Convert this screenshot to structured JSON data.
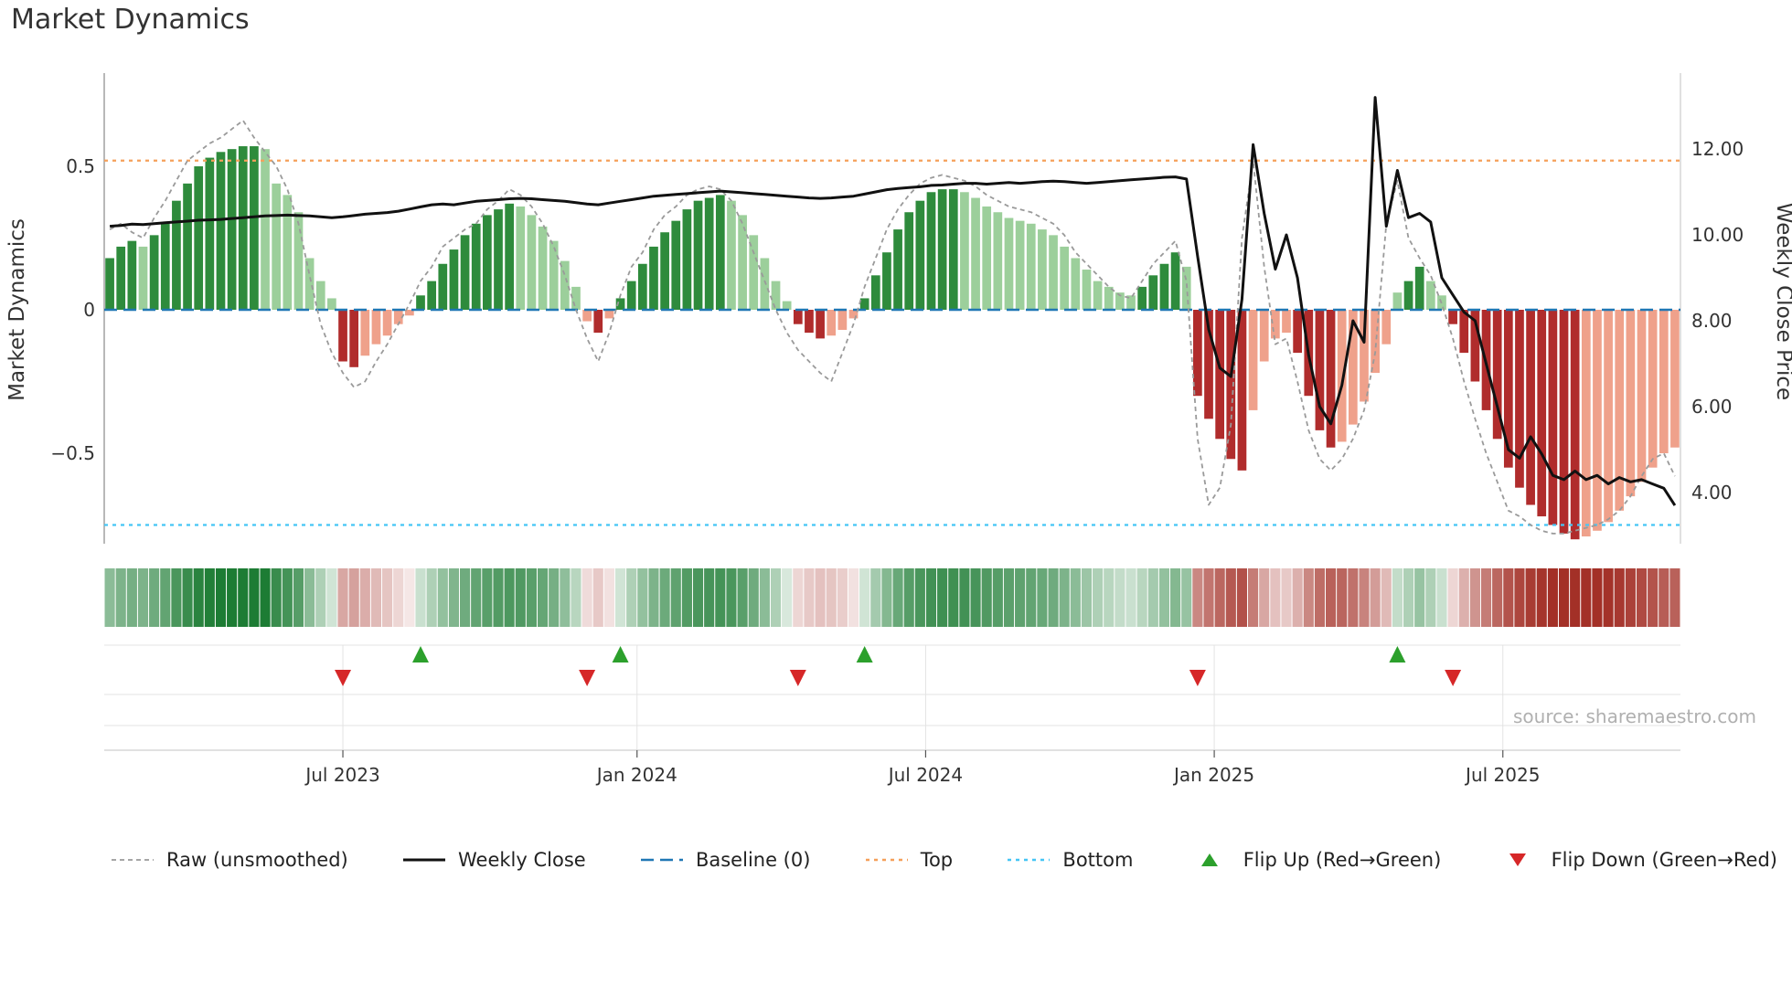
{
  "title": "Market Dynamics",
  "source": "source: sharemaestro.com",
  "axes": {
    "left_label": "Market Dynamics",
    "right_label": "Weekly Close Price",
    "left_ticks": [
      {
        "v": 0.5,
        "label": "0.5"
      },
      {
        "v": 0,
        "label": "0"
      },
      {
        "v": -0.5,
        "label": "−0.5"
      }
    ],
    "right_ticks": [
      {
        "v": 12,
        "label": "12.00"
      },
      {
        "v": 10,
        "label": "10.00"
      },
      {
        "v": 8,
        "label": "8.00"
      },
      {
        "v": 6,
        "label": "6.00"
      },
      {
        "v": 4,
        "label": "4.00"
      }
    ],
    "x_ticks": [
      {
        "i": 21,
        "label": "Jul 2023"
      },
      {
        "i": 47.5,
        "label": "Jan 2024"
      },
      {
        "i": 73.5,
        "label": "Jul 2024"
      },
      {
        "i": 99.5,
        "label": "Jan 2025"
      },
      {
        "i": 125.5,
        "label": "Jul 2025"
      }
    ]
  },
  "colors": {
    "bar_green_dark": "#2e8b3c",
    "bar_green_light": "#9ccf9b",
    "bar_red_dark": "#b02c2c",
    "bar_red_light": "#efa18b",
    "heat_green": "#1d7c34",
    "heat_red": "#a33027",
    "baseline": "#1f77b4",
    "top_line": "#f5a05a",
    "bottom_line": "#45c5f5",
    "raw_line": "#9a9a9a",
    "price_line": "#111111",
    "flip_up": "#2ca02c",
    "flip_down": "#d62728",
    "grid": "#e3e3e3",
    "tick_text": "#333333",
    "source_text": "#b0b0b0"
  },
  "legend": [
    {
      "label": "Raw (unsmoothed)",
      "sample": "line",
      "color": "#9a9a9a",
      "dash": "5 4",
      "width": 1.8
    },
    {
      "label": "Weekly Close",
      "sample": "line",
      "color": "#111111",
      "dash": "",
      "width": 3
    },
    {
      "label": "Baseline (0)",
      "sample": "line",
      "color": "#1f77b4",
      "dash": "14 7",
      "width": 2.6
    },
    {
      "label": "Top",
      "sample": "line",
      "color": "#f5a05a",
      "dash": "4 5",
      "width": 2.4
    },
    {
      "label": "Bottom",
      "sample": "line",
      "color": "#45c5f5",
      "dash": "4 5",
      "width": 2.4
    },
    {
      "label": "Flip Up (Red→Green)",
      "sample": "triangle-up",
      "color": "#2ca02c"
    },
    {
      "label": "Flip Down (Green→Red)",
      "sample": "triangle-down",
      "color": "#d62728"
    }
  ],
  "chart_data": {
    "type": "bar",
    "description": "Weekly oscillator bars (left axis) with raw unsmoothed line, weekly close price line (right axis), heatmap strip and flip markers",
    "ylim_left": [
      -0.82,
      0.82
    ],
    "ylim_right": [
      2.8,
      13.8
    ],
    "reference_lines": {
      "baseline": 0,
      "top": 0.52,
      "bottom": -0.75
    },
    "flip_up_indices": [
      28,
      46,
      68,
      116
    ],
    "flip_down_indices": [
      21,
      43,
      62,
      98,
      121
    ],
    "series": [
      {
        "name": "Market Dynamics (bars)",
        "kind": "bar",
        "axis": "left",
        "values": [
          0.18,
          0.22,
          0.24,
          0.22,
          0.26,
          0.3,
          0.38,
          0.44,
          0.5,
          0.53,
          0.55,
          0.56,
          0.57,
          0.57,
          0.56,
          0.44,
          0.4,
          0.34,
          0.18,
          0.1,
          0.04,
          -0.18,
          -0.2,
          -0.16,
          -0.12,
          -0.09,
          -0.05,
          -0.02,
          0.05,
          0.1,
          0.16,
          0.21,
          0.26,
          0.3,
          0.33,
          0.35,
          0.37,
          0.36,
          0.33,
          0.29,
          0.24,
          0.17,
          0.08,
          -0.04,
          -0.08,
          -0.03,
          0.04,
          0.1,
          0.16,
          0.22,
          0.27,
          0.31,
          0.35,
          0.38,
          0.39,
          0.4,
          0.38,
          0.33,
          0.26,
          0.18,
          0.1,
          0.03,
          -0.05,
          -0.08,
          -0.1,
          -0.09,
          -0.07,
          -0.03,
          0.04,
          0.12,
          0.2,
          0.28,
          0.34,
          0.38,
          0.41,
          0.42,
          0.42,
          0.41,
          0.39,
          0.36,
          0.34,
          0.32,
          0.31,
          0.3,
          0.28,
          0.26,
          0.22,
          0.18,
          0.14,
          0.1,
          0.08,
          0.06,
          0.05,
          0.08,
          0.12,
          0.16,
          0.2,
          0.15,
          -0.3,
          -0.38,
          -0.45,
          -0.52,
          -0.56,
          -0.35,
          -0.18,
          -0.1,
          -0.08,
          -0.15,
          -0.3,
          -0.42,
          -0.48,
          -0.46,
          -0.4,
          -0.32,
          -0.22,
          -0.12,
          0.06,
          0.1,
          0.15,
          0.1,
          0.05,
          -0.05,
          -0.15,
          -0.25,
          -0.35,
          -0.45,
          -0.55,
          -0.62,
          -0.68,
          -0.72,
          -0.75,
          -0.78,
          -0.8,
          -0.79,
          -0.77,
          -0.74,
          -0.7,
          -0.65,
          -0.6,
          -0.55,
          -0.5,
          -0.48
        ]
      },
      {
        "name": "Raw (unsmoothed)",
        "kind": "line",
        "axis": "left",
        "values": [
          0.28,
          0.3,
          0.27,
          0.25,
          0.32,
          0.38,
          0.45,
          0.52,
          0.55,
          0.58,
          0.6,
          0.63,
          0.66,
          0.6,
          0.55,
          0.5,
          0.42,
          0.3,
          0.12,
          -0.05,
          -0.15,
          -0.22,
          -0.27,
          -0.25,
          -0.18,
          -0.12,
          -0.05,
          0.02,
          0.1,
          0.15,
          0.22,
          0.25,
          0.28,
          0.3,
          0.35,
          0.38,
          0.42,
          0.4,
          0.36,
          0.3,
          0.22,
          0.12,
          0.0,
          -0.1,
          -0.18,
          -0.08,
          0.05,
          0.15,
          0.2,
          0.28,
          0.33,
          0.36,
          0.4,
          0.42,
          0.43,
          0.42,
          0.38,
          0.3,
          0.2,
          0.1,
          0.0,
          -0.08,
          -0.14,
          -0.18,
          -0.22,
          -0.25,
          -0.15,
          -0.05,
          0.08,
          0.18,
          0.28,
          0.35,
          0.4,
          0.44,
          0.46,
          0.47,
          0.46,
          0.45,
          0.43,
          0.4,
          0.38,
          0.36,
          0.35,
          0.34,
          0.32,
          0.3,
          0.26,
          0.2,
          0.16,
          0.12,
          0.08,
          0.05,
          0.04,
          0.1,
          0.16,
          0.2,
          0.24,
          0.1,
          -0.45,
          -0.68,
          -0.62,
          -0.4,
          0.25,
          0.52,
          0.15,
          -0.12,
          -0.1,
          -0.25,
          -0.42,
          -0.52,
          -0.56,
          -0.52,
          -0.45,
          -0.35,
          -0.15,
          0.3,
          0.45,
          0.25,
          0.18,
          0.12,
          0.02,
          -0.1,
          -0.25,
          -0.38,
          -0.5,
          -0.6,
          -0.7,
          -0.72,
          -0.75,
          -0.77,
          -0.78,
          -0.78,
          -0.77,
          -0.76,
          -0.75,
          -0.73,
          -0.7,
          -0.65,
          -0.58,
          -0.52,
          -0.5,
          -0.58
        ]
      },
      {
        "name": "Weekly Close",
        "kind": "line",
        "axis": "right",
        "values": [
          10.2,
          10.22,
          10.25,
          10.24,
          10.26,
          10.28,
          10.3,
          10.32,
          10.34,
          10.35,
          10.36,
          10.38,
          10.4,
          10.42,
          10.44,
          10.45,
          10.46,
          10.45,
          10.44,
          10.42,
          10.4,
          10.42,
          10.45,
          10.48,
          10.5,
          10.52,
          10.55,
          10.6,
          10.65,
          10.7,
          10.72,
          10.7,
          10.74,
          10.78,
          10.8,
          10.82,
          10.84,
          10.85,
          10.84,
          10.82,
          10.8,
          10.78,
          10.75,
          10.72,
          10.7,
          10.74,
          10.78,
          10.82,
          10.86,
          10.9,
          10.92,
          10.94,
          10.96,
          10.98,
          11.0,
          11.02,
          11.0,
          10.98,
          10.96,
          10.94,
          10.92,
          10.9,
          10.88,
          10.86,
          10.85,
          10.86,
          10.88,
          10.9,
          10.95,
          11.0,
          11.05,
          11.08,
          11.1,
          11.12,
          11.15,
          11.16,
          11.18,
          11.2,
          11.2,
          11.18,
          11.2,
          11.22,
          11.2,
          11.22,
          11.24,
          11.25,
          11.24,
          11.22,
          11.2,
          11.22,
          11.24,
          11.26,
          11.28,
          11.3,
          11.32,
          11.34,
          11.35,
          11.3,
          9.5,
          7.8,
          6.9,
          6.7,
          8.5,
          12.1,
          10.5,
          9.2,
          10.0,
          9.0,
          7.2,
          6.0,
          5.6,
          6.5,
          8.0,
          7.5,
          13.2,
          10.2,
          11.5,
          10.4,
          10.5,
          10.3,
          9.0,
          8.6,
          8.2,
          8.0,
          7.0,
          6.0,
          5.0,
          4.8,
          5.3,
          4.9,
          4.4,
          4.3,
          4.5,
          4.3,
          4.4,
          4.2,
          4.35,
          4.25,
          4.3,
          4.2,
          4.1,
          3.7
        ]
      }
    ]
  }
}
